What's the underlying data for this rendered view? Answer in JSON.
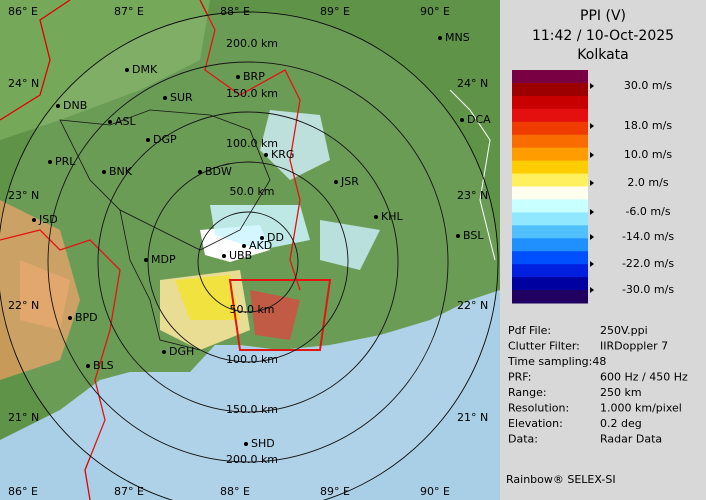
{
  "header": {
    "title": "PPI (V)",
    "time": "11:42 / 10-Oct-2025",
    "site": "Kolkata"
  },
  "legend": {
    "labels": [
      "30.0 m/s",
      "18.0 m/s",
      "10.0 m/s",
      "2.0 m/s",
      "-6.0 m/s",
      "-14.0 m/s",
      "-22.0 m/s",
      "-30.0 m/s"
    ],
    "colors": [
      "#7a0044",
      "#9c0000",
      "#c80000",
      "#e41010",
      "#f03c00",
      "#f86c00",
      "#ff9c00",
      "#ffcc00",
      "#fff060",
      "#fffff0",
      "#c8ffff",
      "#90e8ff",
      "#50c0ff",
      "#2090ff",
      "#0050ff",
      "#0020e0",
      "#0000a0",
      "#200060"
    ]
  },
  "info": [
    {
      "label": "Pdf File:",
      "value": "250V.ppi"
    },
    {
      "label": "Clutter Filter:",
      "value": "IIRDoppler 7"
    },
    {
      "label": "Time sampling:48"
    },
    {
      "label": "PRF:",
      "value": "600 Hz / 450 Hz"
    },
    {
      "label": "Range:",
      "value": "250 km"
    },
    {
      "label": "Resolution:",
      "value": "1.000 km/pixel"
    },
    {
      "label": "Elevation:",
      "value": "0.2 deg"
    },
    {
      "label": "Data:",
      "value": "Radar Data"
    }
  ],
  "footer": "Rainbow® SELEX-SI",
  "map": {
    "lon_labels": [
      "86° E",
      "87° E",
      "88° E",
      "89° E",
      "90° E"
    ],
    "lat_labels": [
      "24° N",
      "23° N",
      "22° N",
      "21° N"
    ],
    "range_labels": [
      "50.0 km",
      "100.0 km",
      "150.0 km",
      "200.0 km"
    ],
    "cities": [
      "MNS",
      "DMK",
      "BRP",
      "DNB",
      "SUR",
      "DCA",
      "ASL",
      "DGP",
      "KRG",
      "PRL",
      "BNK",
      "BDW",
      "JSR",
      "KHL",
      "JSD",
      "BSL",
      "DD",
      "AKD",
      "MDP",
      "UBB",
      "BPD",
      "DGH",
      "BLS",
      "SHD"
    ]
  }
}
